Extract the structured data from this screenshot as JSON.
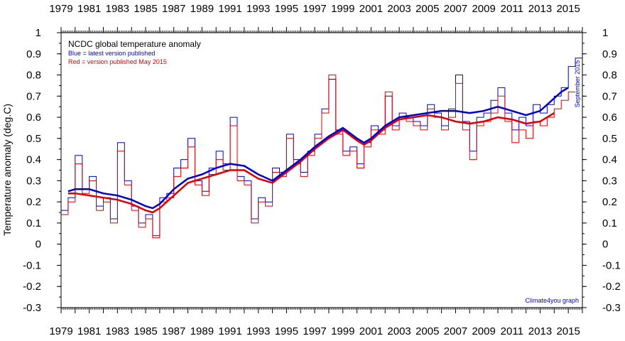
{
  "chart_data": {
    "type": "line",
    "title": "NCDC global temperature anomaly",
    "legend": [
      "Blue = latest version published",
      "Red = version published May 2015"
    ],
    "ylabel": "Temperature anomaly (deg.C)",
    "right_label": "September 2015",
    "credit": "Climate4you graph",
    "xlim": [
      1979,
      2016
    ],
    "ylim": [
      -0.3,
      1.0
    ],
    "grid": false,
    "x_tick_labels": [
      "1979",
      "1981",
      "1983",
      "1985",
      "1987",
      "1989",
      "1991",
      "1993",
      "1995",
      "1997",
      "1999",
      "2001",
      "2003",
      "2005",
      "2007",
      "2009",
      "2011",
      "2013",
      "2015"
    ],
    "y_tick_labels": [
      "1",
      "0.9",
      "0.8",
      "0.7",
      "0.6",
      "0.5",
      "0.4",
      "0.3",
      "0.2",
      "0.1",
      "0",
      "-0.1",
      "-0.2",
      "-0.3"
    ],
    "series": [
      {
        "name": "Blue = latest version published",
        "color": "#0000cc",
        "kind": "monthly",
        "x": [
          1979.0,
          1979.5,
          1980.0,
          1980.5,
          1981.0,
          1981.5,
          1982.0,
          1982.5,
          1983.0,
          1983.5,
          1984.0,
          1984.5,
          1985.0,
          1985.5,
          1986.0,
          1986.5,
          1987.0,
          1987.5,
          1988.0,
          1988.5,
          1989.0,
          1989.5,
          1990.0,
          1990.5,
          1991.0,
          1991.5,
          1992.0,
          1992.5,
          1993.0,
          1993.5,
          1994.0,
          1994.5,
          1995.0,
          1995.5,
          1996.0,
          1996.5,
          1997.0,
          1997.5,
          1998.0,
          1998.5,
          1999.0,
          1999.5,
          2000.0,
          2000.5,
          2001.0,
          2001.5,
          2002.0,
          2002.5,
          2003.0,
          2003.5,
          2004.0,
          2004.5,
          2005.0,
          2005.5,
          2006.0,
          2006.5,
          2007.0,
          2007.5,
          2008.0,
          2008.5,
          2009.0,
          2009.5,
          2010.0,
          2010.5,
          2011.0,
          2011.5,
          2012.0,
          2012.5,
          2013.0,
          2013.5,
          2014.0,
          2014.5,
          2015.0,
          2015.5
        ],
        "y": [
          0.16,
          0.22,
          0.42,
          0.26,
          0.32,
          0.18,
          0.22,
          0.12,
          0.48,
          0.3,
          0.18,
          0.1,
          0.14,
          0.04,
          0.22,
          0.24,
          0.36,
          0.4,
          0.5,
          0.3,
          0.25,
          0.36,
          0.44,
          0.38,
          0.6,
          0.32,
          0.3,
          0.12,
          0.22,
          0.2,
          0.36,
          0.34,
          0.52,
          0.4,
          0.34,
          0.44,
          0.52,
          0.64,
          0.78,
          0.54,
          0.44,
          0.46,
          0.38,
          0.48,
          0.56,
          0.54,
          0.7,
          0.56,
          0.62,
          0.6,
          0.58,
          0.56,
          0.66,
          0.62,
          0.56,
          0.64,
          0.8,
          0.58,
          0.44,
          0.6,
          0.62,
          0.68,
          0.74,
          0.62,
          0.54,
          0.6,
          0.56,
          0.66,
          0.62,
          0.66,
          0.7,
          0.74,
          0.84,
          0.88
        ]
      },
      {
        "name": "Red = version published May 2015",
        "color": "#dd0000",
        "kind": "monthly",
        "x": [
          1979.0,
          1979.5,
          1980.0,
          1980.5,
          1981.0,
          1981.5,
          1982.0,
          1982.5,
          1983.0,
          1983.5,
          1984.0,
          1984.5,
          1985.0,
          1985.5,
          1986.0,
          1986.5,
          1987.0,
          1987.5,
          1988.0,
          1988.5,
          1989.0,
          1989.5,
          1990.0,
          1990.5,
          1991.0,
          1991.5,
          1992.0,
          1992.5,
          1993.0,
          1993.5,
          1994.0,
          1994.5,
          1995.0,
          1995.5,
          1996.0,
          1996.5,
          1997.0,
          1997.5,
          1998.0,
          1998.5,
          1999.0,
          1999.5,
          2000.0,
          2000.5,
          2001.0,
          2001.5,
          2002.0,
          2002.5,
          2003.0,
          2003.5,
          2004.0,
          2004.5,
          2005.0,
          2005.5,
          2006.0,
          2006.5,
          2007.0,
          2007.5,
          2008.0,
          2008.5,
          2009.0,
          2009.5,
          2010.0,
          2010.5,
          2011.0,
          2011.5,
          2012.0,
          2012.5,
          2013.0,
          2013.5,
          2014.0,
          2014.5,
          2015.0
        ],
        "y": [
          0.14,
          0.2,
          0.38,
          0.24,
          0.3,
          0.16,
          0.2,
          0.1,
          0.44,
          0.28,
          0.16,
          0.08,
          0.12,
          0.03,
          0.2,
          0.22,
          0.32,
          0.36,
          0.46,
          0.28,
          0.23,
          0.33,
          0.4,
          0.35,
          0.56,
          0.3,
          0.28,
          0.1,
          0.2,
          0.18,
          0.34,
          0.32,
          0.5,
          0.38,
          0.32,
          0.42,
          0.5,
          0.62,
          0.8,
          0.52,
          0.42,
          0.44,
          0.36,
          0.46,
          0.54,
          0.52,
          0.72,
          0.54,
          0.6,
          0.58,
          0.56,
          0.54,
          0.64,
          0.6,
          0.54,
          0.6,
          0.76,
          0.54,
          0.4,
          0.56,
          0.58,
          0.62,
          0.7,
          0.58,
          0.48,
          0.54,
          0.5,
          0.58,
          0.56,
          0.6,
          0.64,
          0.68,
          0.72
        ]
      },
      {
        "name": "Blue = latest version published",
        "color": "#0000cc",
        "kind": "running-mean",
        "x": [
          1979.5,
          1980,
          1981,
          1982,
          1983,
          1984,
          1985,
          1985.5,
          1986,
          1987,
          1988,
          1989,
          1990,
          1991,
          1992,
          1993,
          1994,
          1995,
          1996,
          1997,
          1998,
          1999,
          2000,
          2000.5,
          2001,
          2002,
          2003,
          2004,
          2005,
          2006,
          2007,
          2008,
          2009,
          2010,
          2011,
          2012,
          2013,
          2014,
          2014.5,
          2015
        ],
        "y": [
          0.25,
          0.26,
          0.26,
          0.24,
          0.23,
          0.21,
          0.18,
          0.17,
          0.19,
          0.26,
          0.31,
          0.33,
          0.36,
          0.38,
          0.37,
          0.33,
          0.3,
          0.35,
          0.4,
          0.46,
          0.51,
          0.55,
          0.5,
          0.48,
          0.5,
          0.56,
          0.6,
          0.61,
          0.62,
          0.63,
          0.63,
          0.62,
          0.63,
          0.65,
          0.63,
          0.61,
          0.63,
          0.69,
          0.72,
          0.74
        ]
      },
      {
        "name": "Red = version published May 2015",
        "color": "#dd0000",
        "kind": "running-mean",
        "x": [
          1979.5,
          1980,
          1981,
          1982,
          1983,
          1984,
          1985,
          1985.5,
          1986,
          1987,
          1988,
          1989,
          1990,
          1991,
          1992,
          1993,
          1994,
          1995,
          1996,
          1997,
          1998,
          1999,
          2000,
          2000.5,
          2001,
          2002,
          2003,
          2004,
          2005,
          2006,
          2007,
          2008,
          2009,
          2010,
          2011,
          2012,
          2013,
          2014
        ],
        "y": [
          0.24,
          0.24,
          0.23,
          0.22,
          0.21,
          0.19,
          0.16,
          0.15,
          0.17,
          0.23,
          0.29,
          0.31,
          0.33,
          0.35,
          0.35,
          0.31,
          0.29,
          0.34,
          0.39,
          0.45,
          0.5,
          0.54,
          0.49,
          0.47,
          0.49,
          0.55,
          0.59,
          0.6,
          0.61,
          0.6,
          0.58,
          0.57,
          0.58,
          0.6,
          0.59,
          0.57,
          0.58,
          0.62
        ]
      }
    ]
  }
}
